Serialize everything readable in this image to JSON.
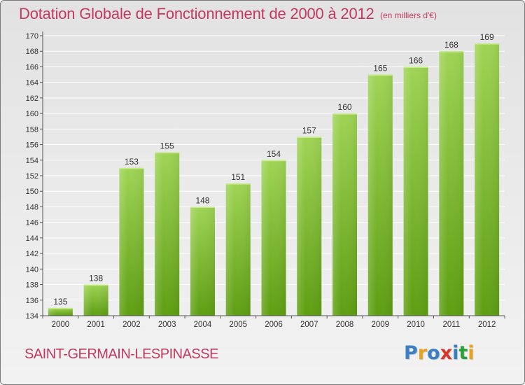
{
  "header": {
    "title": "Dotation Globale de Fonctionnement de 2000 à 2012",
    "subtitle": "(en milliers d'€)"
  },
  "footer": {
    "commune": "SAINT-GERMAIN-LESPINASSE",
    "logo_text": "Proxiti",
    "logo_colors": [
      "#3a7fc4",
      "#e8a21c",
      "#3a7fc4",
      "#d9362b",
      "#3a7fc4",
      "#2c9f3a",
      "#e8a21c"
    ]
  },
  "colors": {
    "accent": "#c23a5f",
    "bar_top": "#9fd455",
    "bar_bottom": "#5e9e12",
    "grid": "#ffffff",
    "axis": "#555555"
  },
  "chart_data": {
    "type": "bar",
    "categories": [
      "2000",
      "2001",
      "2002",
      "2003",
      "2004",
      "2005",
      "2006",
      "2007",
      "2008",
      "2009",
      "2010",
      "2011",
      "2012"
    ],
    "values": [
      135,
      138,
      153,
      155,
      148,
      151,
      154,
      157,
      160,
      165,
      166,
      168,
      169
    ],
    "data_labels": [
      "135",
      "138",
      "153",
      "155",
      "148",
      "151",
      "154",
      "157",
      "160",
      "165",
      "166",
      "168",
      "169"
    ],
    "title": "Dotation Globale de Fonctionnement de 2000 à 2012",
    "subtitle": "(en milliers d'€)",
    "ylim": [
      134,
      170
    ],
    "yticks": [
      "134",
      "136",
      "138",
      "140",
      "142",
      "144",
      "146",
      "148",
      "150",
      "152",
      "154",
      "156",
      "158",
      "160",
      "162",
      "164",
      "166",
      "168",
      "170"
    ],
    "grid": true,
    "legend": "none"
  }
}
